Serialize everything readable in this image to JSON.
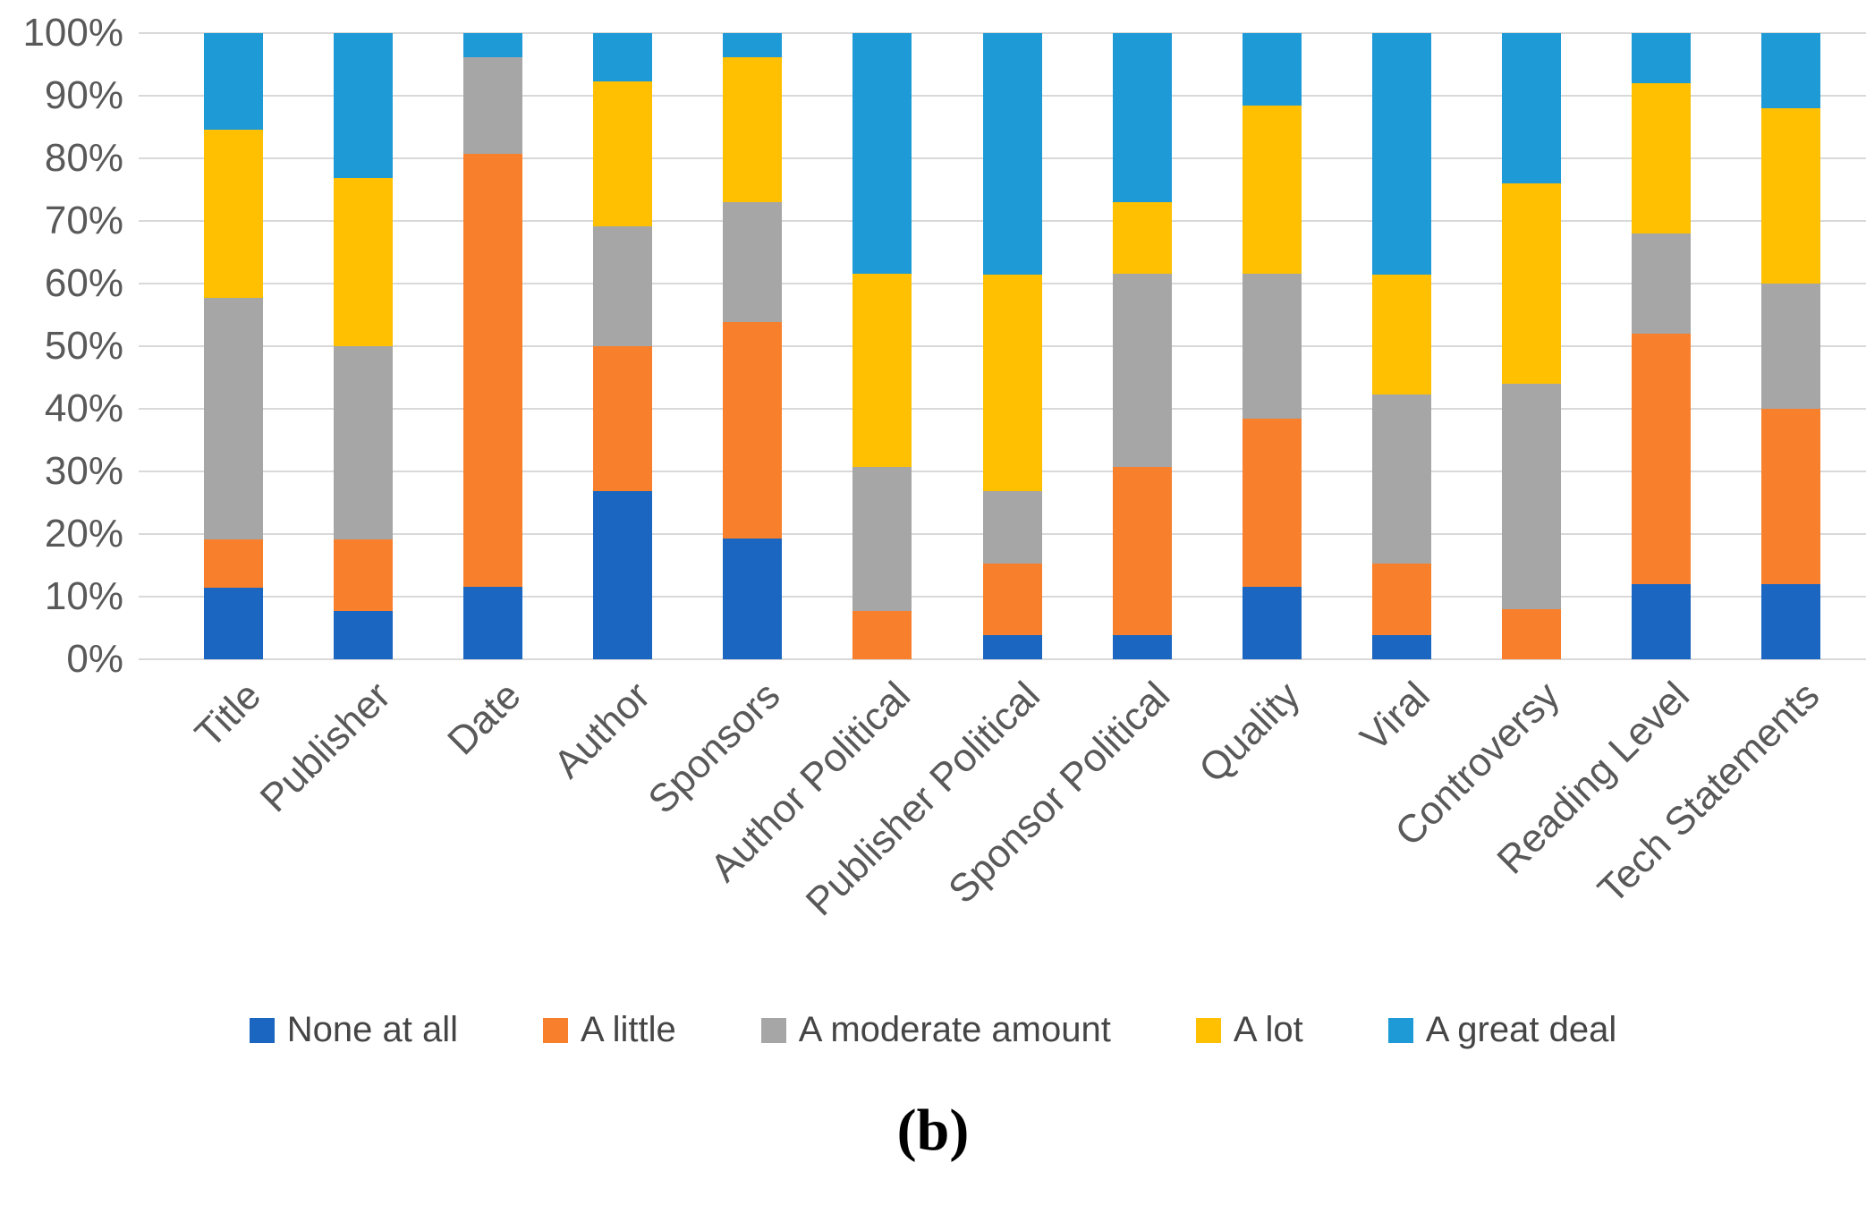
{
  "caption": "(b)",
  "colors": {
    "grid": "#d9d9d9",
    "axis_text": "#595959",
    "legend_text": "#454545"
  },
  "y_axis": {
    "ticks": [
      "0%",
      "10%",
      "20%",
      "30%",
      "40%",
      "50%",
      "60%",
      "70%",
      "80%",
      "90%",
      "100%"
    ]
  },
  "chart_data": {
    "type": "bar",
    "stacked": true,
    "units": "percent",
    "title": "",
    "xlabel": "",
    "ylabel": "",
    "ylim": [
      0,
      100
    ],
    "grid": true,
    "legend_position": "bottom",
    "categories": [
      "Title",
      "Publisher",
      "Date",
      "Author",
      "Sponsors",
      "Author Political",
      "Publisher Political",
      "Sponsor Political",
      "Quality",
      "Viral",
      "Controversy",
      "Reading Level",
      "Tech Statements"
    ],
    "series": [
      {
        "name": "None at all",
        "color": "#1b66c1",
        "values": [
          11.5,
          7.7,
          11.5,
          26.9,
          19.2,
          0,
          3.8,
          3.8,
          11.5,
          3.8,
          0,
          12,
          12
        ]
      },
      {
        "name": "A little",
        "color": "#f8802d",
        "values": [
          7.7,
          11.5,
          69.2,
          23.1,
          34.6,
          7.7,
          11.5,
          26.9,
          26.9,
          11.5,
          8,
          40,
          28
        ]
      },
      {
        "name": "A moderate amount",
        "color": "#a6a6a6",
        "values": [
          38.5,
          30.8,
          15.4,
          19.2,
          19.2,
          23.1,
          11.5,
          30.8,
          23.1,
          26.9,
          36,
          16,
          20
        ]
      },
      {
        "name": "A lot",
        "color": "#fec000",
        "values": [
          26.9,
          26.9,
          0,
          23.1,
          23.1,
          30.8,
          34.6,
          11.5,
          26.9,
          19.2,
          32,
          24,
          28
        ]
      },
      {
        "name": "A great deal",
        "color": "#1e9bd6",
        "values": [
          15.4,
          23.1,
          3.8,
          7.7,
          3.8,
          38.5,
          38.5,
          26.9,
          11.5,
          38.5,
          24,
          8,
          12
        ]
      }
    ]
  }
}
